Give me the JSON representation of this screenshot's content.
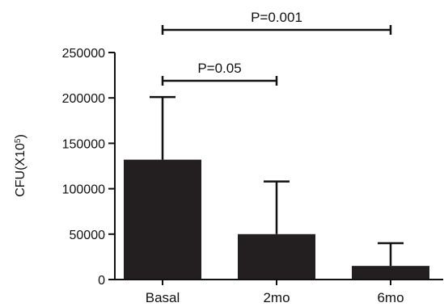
{
  "chart_data": {
    "type": "bar",
    "categories": [
      "Basal",
      "2mo",
      "6mo"
    ],
    "values": [
      132000,
      50000,
      15000
    ],
    "error_upper": [
      201000,
      108000,
      40000
    ],
    "ylabel": "CFU(X10",
    "ylabel_superscript": "5",
    "ylabel_suffix": ")",
    "ylim": [
      0,
      250000
    ],
    "yticks": [
      0,
      50000,
      100000,
      150000,
      200000,
      250000
    ],
    "ytick_labels": [
      "0",
      "50000",
      "100000",
      "150000",
      "200000",
      "250000"
    ],
    "grid": false,
    "legend": "none",
    "bar_color": "#231f20",
    "annotations": [
      {
        "label": "P=0.05",
        "from": "Basal",
        "to": "2mo",
        "level": 1
      },
      {
        "label": "P=0.001",
        "from": "Basal",
        "to": "6mo",
        "level": 2
      }
    ]
  }
}
